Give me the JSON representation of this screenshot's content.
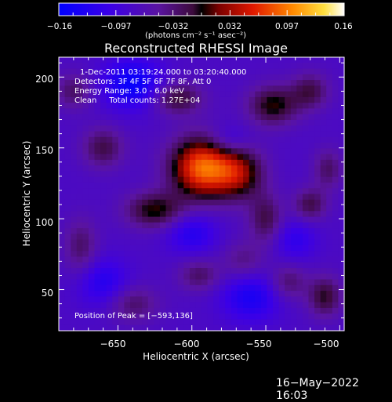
{
  "colorbar": {
    "tick_labels": [
      "−0.16",
      "−0.097",
      "−0.032",
      "0.032",
      "0.097",
      "0.16"
    ],
    "unit_label": "(photons cm⁻² s⁻¹ asec⁻²)",
    "range": [
      -0.16,
      0.16
    ]
  },
  "plot": {
    "title": "Reconstructed RHESSI Image",
    "info_lines": [
      "1-Dec-2011 03:19:24.000 to 03:20:40.000",
      "Detectors: 3F 4F 5F 6F 7F 8F, Att 0",
      "Energy Range: 3.0 - 6.0 keV",
      "Clean     Total counts: 1.27E+04"
    ],
    "peak_label": "Position of Peak = [−593,136]"
  },
  "footer": {
    "timestamp": "16−May−2022 16:03"
  },
  "chart_data": {
    "type": "heatmap",
    "title": "Reconstructed RHESSI Image",
    "xlabel": "Heliocentric X (arcsec)",
    "ylabel": "Heliocentric Y (arcsec)",
    "xlim": [
      -690,
      -497
    ],
    "ylim": [
      21,
      214
    ],
    "x_ticks": [
      -650,
      -600,
      -550,
      -500
    ],
    "x_tick_labels": [
      "−650",
      "−600",
      "−550",
      "−500"
    ],
    "y_ticks": [
      50,
      100,
      150,
      200
    ],
    "y_tick_labels": [
      "50",
      "100",
      "150",
      "200"
    ],
    "colorscale": "red-temperature",
    "value_range": [
      -0.16,
      0.16
    ],
    "peak": {
      "x": -593,
      "y": 136,
      "value": 0.16
    },
    "sources": [
      {
        "x": -593,
        "y": 136,
        "amp": 0.16,
        "sx": 15,
        "sy": 15
      },
      {
        "x": -568,
        "y": 132,
        "amp": 0.09,
        "sx": 12,
        "sy": 13
      },
      {
        "x": -625,
        "y": 106,
        "amp": 0.08,
        "sx": 14,
        "sy": 9
      },
      {
        "x": -660,
        "y": 150,
        "amp": 0.06,
        "sx": 10,
        "sy": 10
      },
      {
        "x": -610,
        "y": 185,
        "amp": 0.07,
        "sx": 12,
        "sy": 8
      },
      {
        "x": -545,
        "y": 180,
        "amp": 0.08,
        "sx": 12,
        "sy": 10
      },
      {
        "x": -520,
        "y": 190,
        "amp": 0.06,
        "sx": 9,
        "sy": 9
      },
      {
        "x": -550,
        "y": 100,
        "amp": 0.06,
        "sx": 8,
        "sy": 12
      },
      {
        "x": -520,
        "y": 110,
        "amp": 0.06,
        "sx": 8,
        "sy": 8
      },
      {
        "x": -508,
        "y": 135,
        "amp": 0.05,
        "sx": 7,
        "sy": 10
      },
      {
        "x": -535,
        "y": 55,
        "amp": 0.05,
        "sx": 9,
        "sy": 9
      },
      {
        "x": -510,
        "y": 45,
        "amp": 0.07,
        "sx": 8,
        "sy": 10
      },
      {
        "x": -595,
        "y": 60,
        "amp": 0.05,
        "sx": 10,
        "sy": 8
      },
      {
        "x": -640,
        "y": 40,
        "amp": 0.05,
        "sx": 12,
        "sy": 9
      },
      {
        "x": -675,
        "y": 80,
        "amp": 0.05,
        "sx": 8,
        "sy": 14
      },
      {
        "x": -680,
        "y": 190,
        "amp": 0.05,
        "sx": 9,
        "sy": 9
      },
      {
        "x": -565,
        "y": 70,
        "amp": 0.04,
        "sx": 10,
        "sy": 10
      },
      {
        "x": -640,
        "y": 195,
        "amp": -0.08,
        "sx": 14,
        "sy": 12
      },
      {
        "x": -575,
        "y": 155,
        "amp": -0.04,
        "sx": 10,
        "sy": 8
      },
      {
        "x": -600,
        "y": 90,
        "amp": -0.05,
        "sx": 12,
        "sy": 10
      },
      {
        "x": -560,
        "y": 45,
        "amp": -0.06,
        "sx": 14,
        "sy": 12
      },
      {
        "x": -660,
        "y": 55,
        "amp": -0.05,
        "sx": 12,
        "sy": 12
      },
      {
        "x": -530,
        "y": 85,
        "amp": -0.04,
        "sx": 10,
        "sy": 10
      }
    ]
  }
}
